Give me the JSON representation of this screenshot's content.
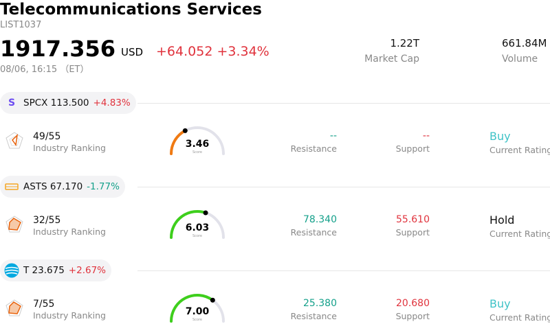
{
  "header": {
    "title": "Telecommunications Services",
    "code": "LIST1037",
    "price": "1917.356",
    "currency": "USD",
    "change": "+64.052 +3.34%",
    "timestamp": "08/06, 16:15 （ET）",
    "market_cap_value": "1.22T",
    "market_cap_label": "Market Cap",
    "volume_value": "661.84M",
    "volume_label": "Volume"
  },
  "stocks": [
    {
      "ticker": "SPCX",
      "price": "113.500",
      "change": "+4.83%",
      "direction": "up",
      "logo_icon": "spcx-logo-icon",
      "logo_color": "#6c4cf1",
      "ranking": "49/55",
      "ranking_label": "Industry Ranking",
      "score": "3.46",
      "score_label": "Score",
      "score_fraction": 0.346,
      "gauge_color": "#f07a12",
      "resistance": "--",
      "resistance_label": "Resistance",
      "support": "--",
      "support_label": "Support",
      "rating": "Buy",
      "rating_label": "Current Rating",
      "rating_color": "#3fc3c7"
    },
    {
      "ticker": "ASTS",
      "price": "67.170",
      "change": "-1.77%",
      "direction": "down",
      "logo_icon": "asts-logo-icon",
      "logo_color": "#f5a623",
      "ranking": "32/55",
      "ranking_label": "Industry Ranking",
      "score": "6.03",
      "score_label": "Score",
      "score_fraction": 0.603,
      "gauge_color": "#3ecf1c",
      "resistance": "78.340",
      "resistance_label": "Resistance",
      "support": "55.610",
      "support_label": "Support",
      "rating": "Hold",
      "rating_label": "Current Rating",
      "rating_color": "#111111"
    },
    {
      "ticker": "T",
      "price": "23.675",
      "change": "+2.67%",
      "direction": "up",
      "logo_icon": "att-logo-icon",
      "logo_color": "#00a8e0",
      "ranking": "7/55",
      "ranking_label": "Industry Ranking",
      "score": "7.00",
      "score_label": "Score",
      "score_fraction": 0.7,
      "gauge_color": "#3ecf1c",
      "resistance": "25.380",
      "resistance_label": "Resistance",
      "support": "20.680",
      "support_label": "Support",
      "rating": "Buy",
      "rating_label": "Current Rating",
      "rating_color": "#3fc3c7"
    }
  ]
}
